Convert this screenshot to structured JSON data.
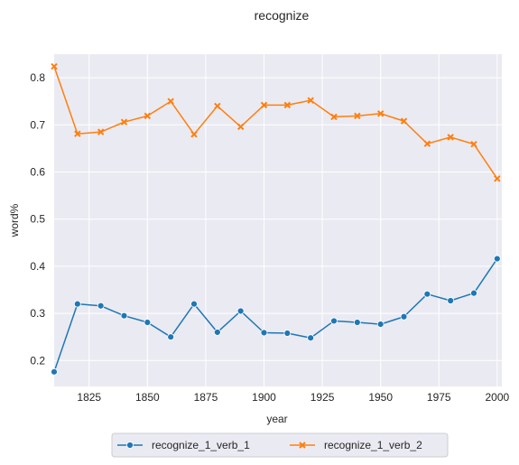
{
  "chart_data": {
    "type": "line",
    "title": "recognize",
    "xlabel": "year",
    "ylabel": "word%",
    "xlim": [
      1810,
      2002
    ],
    "ylim": [
      0.145,
      0.85
    ],
    "x_ticks": [
      1825,
      1850,
      1875,
      1900,
      1925,
      1950,
      1975,
      2000
    ],
    "y_ticks": [
      0.2,
      0.3,
      0.4,
      0.5,
      0.6,
      0.7,
      0.8
    ],
    "grid": true,
    "legend_position": "bottom-center",
    "x": [
      1810,
      1820,
      1830,
      1840,
      1850,
      1860,
      1870,
      1880,
      1890,
      1900,
      1910,
      1920,
      1930,
      1940,
      1950,
      1960,
      1970,
      1980,
      1990,
      2000
    ],
    "series": [
      {
        "name": "recognize_1_verb_1",
        "color": "#1f77b4",
        "marker": "circle",
        "values": [
          0.176,
          0.32,
          0.316,
          0.295,
          0.281,
          0.25,
          0.32,
          0.26,
          0.305,
          0.259,
          0.258,
          0.248,
          0.284,
          0.281,
          0.277,
          0.293,
          0.341,
          0.327,
          0.343,
          0.416
        ]
      },
      {
        "name": "recognize_1_verb_2",
        "color": "#ff7f0e",
        "marker": "x",
        "values": [
          0.824,
          0.681,
          0.685,
          0.706,
          0.719,
          0.75,
          0.68,
          0.74,
          0.696,
          0.742,
          0.742,
          0.752,
          0.717,
          0.719,
          0.724,
          0.708,
          0.66,
          0.674,
          0.659,
          0.586
        ]
      }
    ]
  }
}
